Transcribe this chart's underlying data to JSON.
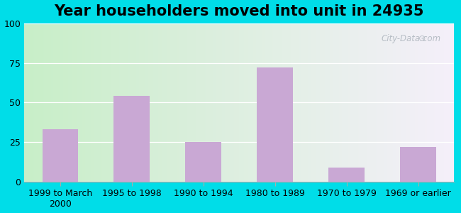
{
  "title": "Year householders moved into unit in 24935",
  "categories": [
    "1999 to March\n2000",
    "1995 to 1998",
    "1990 to 1994",
    "1980 to 1989",
    "1970 to 1979",
    "1969 or earlier"
  ],
  "values": [
    33,
    54,
    25,
    72,
    9,
    22
  ],
  "bar_color": "#c9a8d4",
  "ylim": [
    0,
    100
  ],
  "yticks": [
    0,
    25,
    50,
    75,
    100
  ],
  "background_outer": "#00dde8",
  "background_left": "#c8eec8",
  "background_right": "#f5f0fa",
  "title_fontsize": 15,
  "tick_fontsize": 9,
  "watermark": "City-Data.com"
}
